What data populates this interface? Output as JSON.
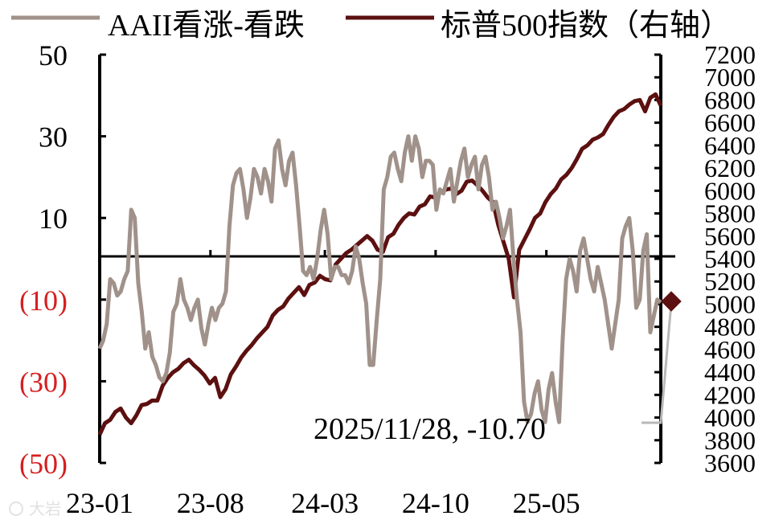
{
  "legend": {
    "series1": "AAII看涨-看跌",
    "series2": "标普500指数（右轴）"
  },
  "annotation": "2025/11/28, -10.70",
  "watermark": "大岩",
  "colors": {
    "sentiment": "#a0928a",
    "spx": "#5c1010",
    "negative_tick": "#d61f1f",
    "axis": "#000000",
    "end_marker_line": "#b8b8b8"
  },
  "chart_data": {
    "type": "line",
    "x_tick_labels": [
      "23-01",
      "23-08",
      "24-03",
      "24-10",
      "25-05"
    ],
    "left_axis": {
      "ylim": [
        -50,
        50
      ],
      "ticks": [
        50,
        30,
        10,
        -10,
        -30,
        -50
      ],
      "tick_labels": [
        "50",
        "30",
        "10",
        "(10)",
        "(30)",
        "(50)"
      ]
    },
    "right_axis": {
      "ylim": [
        3600,
        7200
      ],
      "ticks": [
        7200,
        7000,
        6800,
        6600,
        6400,
        6200,
        6000,
        5800,
        5600,
        5400,
        5200,
        5000,
        4800,
        4600,
        4400,
        4200,
        4000,
        3800,
        3600
      ],
      "tick_labels": [
        "7200",
        "7000",
        "6800",
        "6600",
        "6400",
        "6200",
        "6000",
        "5800",
        "5600",
        "5400",
        "5200",
        "5000",
        "4800",
        "4600",
        "4400",
        "4200",
        "4000",
        "3800",
        "3600"
      ]
    },
    "x_range_weeks": [
      0,
      152
    ],
    "x_tick_weeks": [
      0,
      30,
      61,
      91,
      121
    ],
    "series": [
      {
        "name": "AAII看涨-看跌",
        "axis": "left",
        "values": [
          -22,
          -20,
          -16,
          -5,
          -6,
          -9,
          -8,
          -5,
          -3,
          12,
          10,
          -6,
          -13,
          -22,
          -18,
          -24,
          -26,
          -29,
          -30,
          -28,
          -23,
          -13,
          -11,
          -5,
          -10,
          -12,
          -15,
          -12,
          -10,
          -17,
          -21,
          -16,
          -12,
          -15,
          -12,
          -11,
          -8,
          8,
          18,
          21,
          22,
          17,
          10,
          15,
          22,
          20,
          16,
          22,
          19,
          14,
          27,
          29,
          22,
          18,
          24,
          26,
          18,
          8,
          -3,
          -4,
          -2,
          -5,
          0,
          7,
          12,
          6,
          -5,
          -2,
          -2,
          -4,
          -4,
          -6,
          -3,
          3,
          0,
          -6,
          -11,
          -26,
          -26,
          -15,
          -5,
          17,
          20,
          25,
          26,
          22,
          19,
          26,
          30,
          24,
          30,
          27,
          20,
          24,
          24,
          23,
          12,
          17,
          16,
          19,
          22,
          14,
          19,
          24,
          27,
          20,
          23,
          25,
          17,
          23,
          25
        ],
        "note": "weekly spread, first 110 weeks shown in detail then interpolated"
      }
    ]
  }
}
